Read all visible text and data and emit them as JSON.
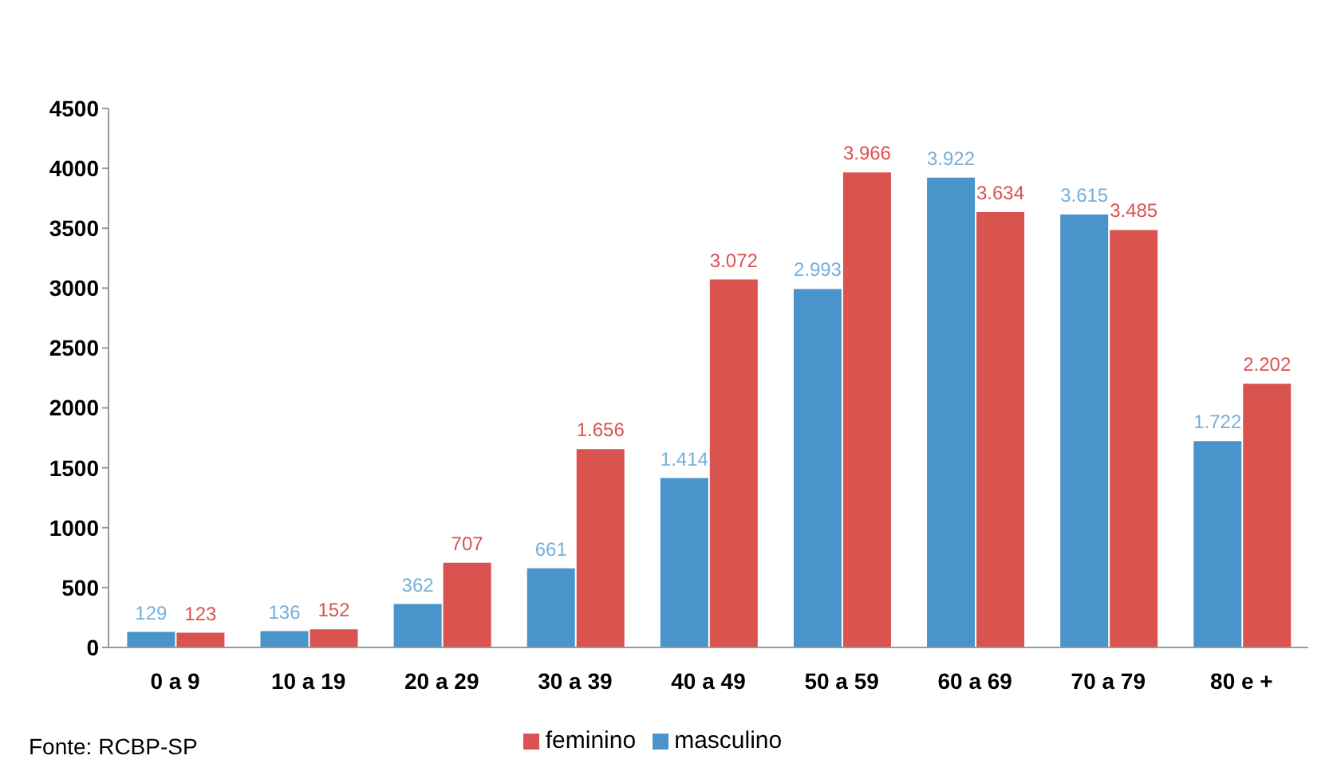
{
  "chart_data": {
    "type": "bar",
    "categories": [
      "0 a 9",
      "10 a 19",
      "20 a 29",
      "30 a 39",
      "40 a 49",
      "50 a 59",
      "60 a 69",
      "70 a 79",
      "80 e +"
    ],
    "series": [
      {
        "name": "masculino",
        "color": "#4a94cc",
        "values": [
          129,
          136,
          362,
          661,
          1414,
          2993,
          3922,
          3615,
          1722
        ],
        "value_labels": [
          "129",
          "136",
          "362",
          "661",
          "1.414",
          "2.993",
          "3.922",
          "3.615",
          "1.722"
        ]
      },
      {
        "name": "feminino",
        "color": "#d9534f",
        "values": [
          123,
          152,
          707,
          1656,
          3072,
          3966,
          3634,
          3485,
          2202
        ],
        "value_labels": [
          "123",
          "152",
          "707",
          "1.656",
          "3.072",
          "3.966",
          "3.634",
          "3.485",
          "2.202"
        ]
      }
    ],
    "ylim": [
      0,
      4500
    ],
    "yticks": [
      0,
      500,
      1000,
      1500,
      2000,
      2500,
      3000,
      3500,
      4000,
      4500
    ],
    "grid": false,
    "legend": "bottom",
    "annotations": [
      "Fonte: RCBP-SP"
    ]
  }
}
